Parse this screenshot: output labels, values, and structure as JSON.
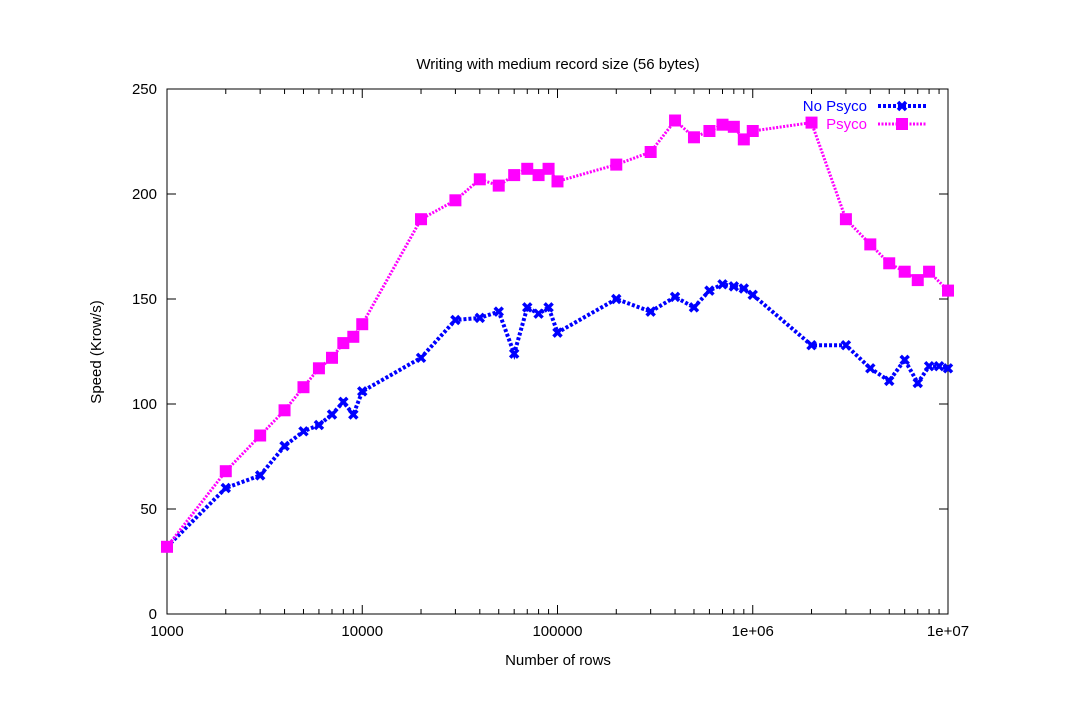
{
  "chart_data": {
    "type": "line",
    "title": "Writing with medium record size (56 bytes)",
    "xlabel": "Number of rows",
    "ylabel": "Speed (Krow/s)",
    "xscale": "log",
    "xlim": [
      1000,
      10000000
    ],
    "ylim": [
      0,
      250
    ],
    "xticks": [
      1000,
      10000,
      100000,
      1000000,
      10000000
    ],
    "xtick_labels": [
      "1000",
      "10000",
      "100000",
      "1e+06",
      "1e+07"
    ],
    "yticks": [
      0,
      50,
      100,
      150,
      200,
      250
    ],
    "ytick_labels": [
      "0",
      "50",
      "100",
      "150",
      "200",
      "250"
    ],
    "grid": false,
    "legend_position": "top-right",
    "series": [
      {
        "name": "No Psyco",
        "color": "#0000ff",
        "marker": "x-cross",
        "line": "dotted",
        "x": [
          1000,
          2000,
          3000,
          4000,
          5000,
          6000,
          7000,
          8000,
          9000,
          10000,
          20000,
          30000,
          40000,
          50000,
          60000,
          70000,
          80000,
          90000,
          100000,
          200000,
          300000,
          400000,
          500000,
          600000,
          700000,
          800000,
          900000,
          1000000,
          2000000,
          3000000,
          4000000,
          5000000,
          6000000,
          7000000,
          8000000,
          9000000,
          10000000
        ],
        "y": [
          32,
          60,
          66,
          80,
          87,
          90,
          95,
          101,
          95,
          106,
          122,
          140,
          141,
          144,
          124,
          146,
          143,
          146,
          134,
          150,
          144,
          151,
          146,
          154,
          157,
          156,
          155,
          152,
          128,
          128,
          117,
          111,
          121,
          110,
          118,
          118,
          117
        ]
      },
      {
        "name": "Psyco",
        "color": "#ff00ff",
        "marker": "square",
        "line": "dotted",
        "x": [
          1000,
          2000,
          3000,
          4000,
          5000,
          6000,
          7000,
          8000,
          9000,
          10000,
          20000,
          30000,
          40000,
          50000,
          60000,
          70000,
          80000,
          90000,
          100000,
          200000,
          300000,
          400000,
          500000,
          600000,
          700000,
          800000,
          900000,
          1000000,
          2000000,
          3000000,
          4000000,
          5000000,
          6000000,
          7000000,
          8000000,
          10000000
        ],
        "y": [
          32,
          68,
          85,
          97,
          108,
          117,
          122,
          129,
          132,
          138,
          188,
          197,
          207,
          204,
          209,
          212,
          209,
          212,
          206,
          214,
          220,
          235,
          227,
          230,
          233,
          232,
          226,
          230,
          234,
          188,
          176,
          167,
          163,
          159,
          163,
          154
        ]
      }
    ]
  }
}
